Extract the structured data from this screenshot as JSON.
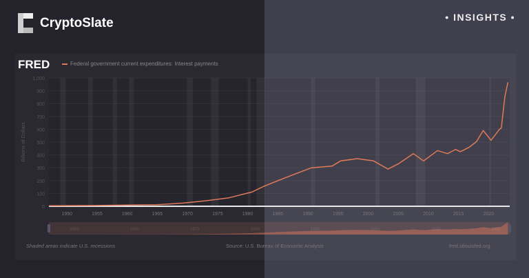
{
  "header": {
    "brand": "CryptoSlate",
    "tag": "• INSIGHTS •"
  },
  "fred": {
    "logo": "FRED",
    "legend": "Federal government current expenditures: Interest payments",
    "recession_note": "Shaded areas indicate U.S. recessions",
    "source": "Source: U.S. Bureau of Economic Analysis",
    "url": "fred.stlouisfed.org"
  },
  "colors": {
    "line": "#e07a5a",
    "bg_left": "#24232b",
    "bg_right": "#403f4d"
  },
  "chart_data": {
    "type": "line",
    "title": "",
    "xlabel": "",
    "ylabel": "Billions of Dollars",
    "xlim": [
      1947,
      2023.5
    ],
    "ylim": [
      0,
      1000
    ],
    "grid": true,
    "legend": "top-left",
    "x_ticks": [
      1950,
      1955,
      1960,
      1965,
      1970,
      1975,
      1980,
      1985,
      1990,
      1995,
      2000,
      2005,
      2010,
      2015,
      2020
    ],
    "y_ticks": [
      0,
      100,
      200,
      300,
      400,
      500,
      600,
      700,
      800,
      900,
      1000
    ],
    "y_tick_labels": [
      "0",
      "100",
      "200",
      "300",
      "400",
      "500",
      "600",
      "700",
      "800",
      "900",
      "1,000"
    ],
    "minimap_ticks": [
      1950,
      1960,
      1970,
      1980,
      1990,
      2000,
      2010,
      2020
    ],
    "recessions": [
      [
        1948.9,
        1949.8
      ],
      [
        1953.5,
        1954.3
      ],
      [
        1957.6,
        1958.3
      ],
      [
        1960.3,
        1961.1
      ],
      [
        1969.9,
        1970.9
      ],
      [
        1973.9,
        1975.2
      ],
      [
        1980.0,
        1980.5
      ],
      [
        1981.5,
        1982.9
      ],
      [
        1990.5,
        1991.2
      ],
      [
        2001.2,
        2001.9
      ],
      [
        2007.9,
        2009.5
      ],
      [
        2020.1,
        2020.4
      ]
    ],
    "series": [
      {
        "name": "Federal government current expenditures: Interest payments",
        "x": [
          1947,
          1950,
          1955,
          1960,
          1965,
          1969.3,
          1973.1,
          1976.9,
          1980.7,
          1982.7,
          1986.5,
          1990.6,
          1994,
          1995.4,
          1998.2,
          2000.9,
          2003.3,
          2005,
          2007.5,
          2009.2,
          2011.5,
          2013.2,
          2014.5,
          2015.3,
          2016.8,
          2018,
          2019.1,
          2020.4,
          2021.8,
          2022.1,
          2022.7,
          2023.2
        ],
        "y": [
          4,
          5,
          6,
          9,
          12,
          25,
          43,
          66,
          111,
          156,
          227,
          300,
          313,
          353,
          371,
          353,
          290,
          330,
          410,
          353,
          434,
          410,
          443,
          425,
          461,
          505,
          591,
          514,
          600,
          610,
          855,
          966
        ]
      }
    ]
  }
}
